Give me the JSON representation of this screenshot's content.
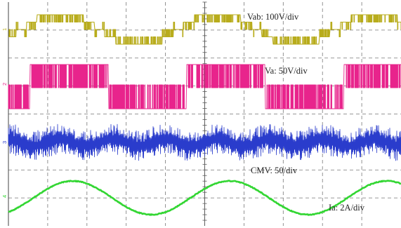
{
  "chart_data": {
    "type": "line",
    "x_divisions": 10,
    "y_divisions": 8,
    "grid": true,
    "series": [
      {
        "name": "Vab",
        "label": "Vab: 100V/div",
        "scale": "100V/div",
        "color": "#b8ac1c",
        "marker": "1",
        "waveform": "multilevel line voltage (PWM)",
        "cycles": 2.5
      },
      {
        "name": "Va",
        "label": "Va: 50V/div",
        "scale": "50V/div",
        "color": "#e8248c",
        "marker": "2",
        "waveform": "two-level pole voltage (PWM)",
        "cycles": 2.5
      },
      {
        "name": "CMV",
        "label": "CMV: 50/div",
        "scale": "50/div",
        "color": "#2a3ccc",
        "marker": "3",
        "waveform": "common-mode voltage (PWM)",
        "cycles": 2.5
      },
      {
        "name": "Ia",
        "label": "Ia: 2A/div",
        "scale": "2A/div",
        "color": "#33d633",
        "marker": "4",
        "waveform": "sinusoidal phase current",
        "cycles": 2.5
      }
    ]
  }
}
